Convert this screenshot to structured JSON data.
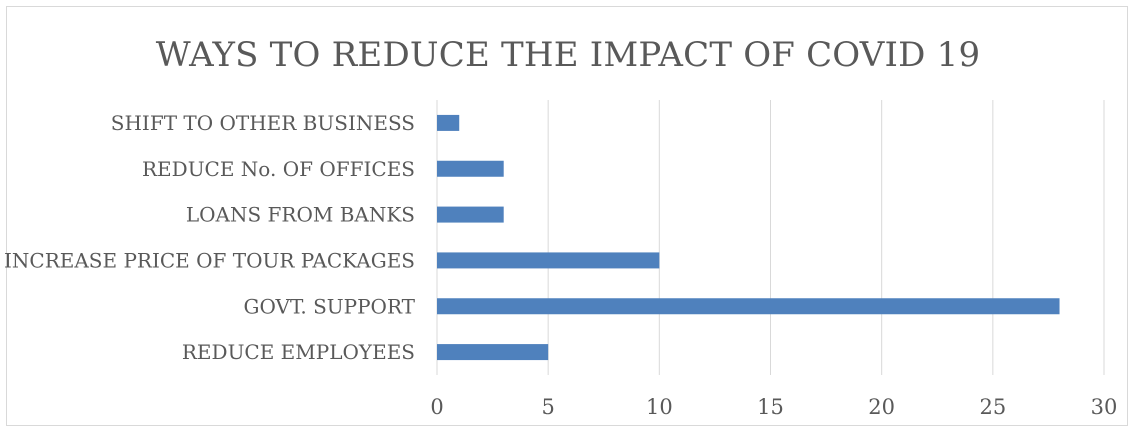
{
  "chart_data": {
    "type": "bar",
    "orientation": "horizontal",
    "title": "WAYS TO REDUCE THE IMPACT OF COVID 19",
    "categories": [
      "REDUCE EMPLOYEES",
      "GOVT. SUPPORT",
      "INCREASE PRICE OF TOUR PACKAGES",
      "LOANS FROM BANKS",
      "REDUCE No. OF OFFICES",
      "SHIFT TO OTHER BUSINESS"
    ],
    "values": [
      5,
      28,
      10,
      3,
      3,
      1
    ],
    "xlim": [
      0,
      30
    ],
    "xticks": [
      0,
      5,
      10,
      15,
      20,
      25,
      30
    ],
    "grid": true,
    "legend": "none",
    "bar_color": "#4f81bd",
    "grid_color": "#d9d9d9"
  }
}
